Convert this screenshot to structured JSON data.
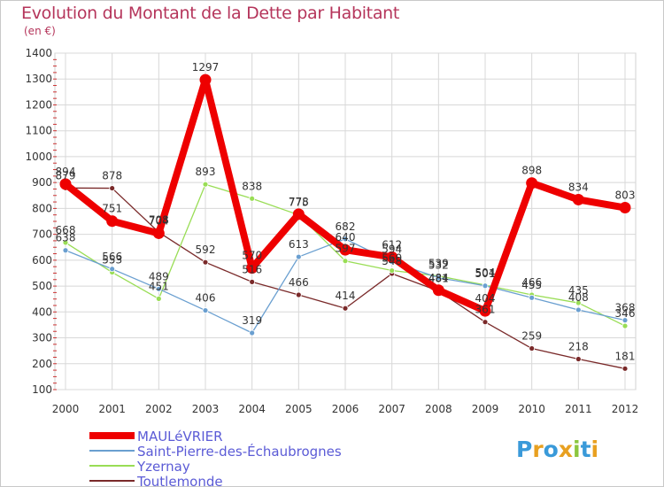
{
  "title": "Evolution du Montant de la Dette par Habitant",
  "unit": "(en €)",
  "logo_text": "Proxiti",
  "chart_data": {
    "type": "line",
    "x": [
      "2000",
      "2001",
      "2002",
      "2003",
      "2004",
      "2005",
      "2006",
      "2007",
      "2008",
      "2009",
      "2010",
      "2011",
      "2012"
    ],
    "ylim": [
      100,
      1400
    ],
    "yticks": [
      100,
      200,
      300,
      400,
      500,
      600,
      700,
      800,
      900,
      1000,
      1100,
      1200,
      1300,
      1400
    ],
    "grid": true,
    "legend_position": "bottom-left",
    "series": [
      {
        "name": "MAULéVRIER",
        "color": "#ee0000",
        "values": [
          894,
          751,
          704,
          1297,
          570,
          778,
          640,
          612,
          484,
          404,
          898,
          834,
          803
        ]
      },
      {
        "name": "Saint-Pierre-des-Échaubrognes",
        "color": "#6a9fd0",
        "values": [
          638,
          566,
          489,
          406,
          319,
          613,
          682,
          594,
          532,
          501,
          455,
          408,
          368
        ]
      },
      {
        "name": "Yzernay",
        "color": "#99dd55",
        "values": [
          668,
          553,
          451,
          893,
          838,
          775,
          597,
          560,
          539,
          504,
          466,
          435,
          346
        ]
      },
      {
        "name": "Toutlemonde",
        "color": "#7a2a2a",
        "values": [
          879,
          878,
          708,
          592,
          516,
          466,
          414,
          548,
          481,
          361,
          259,
          218,
          181
        ]
      }
    ]
  }
}
